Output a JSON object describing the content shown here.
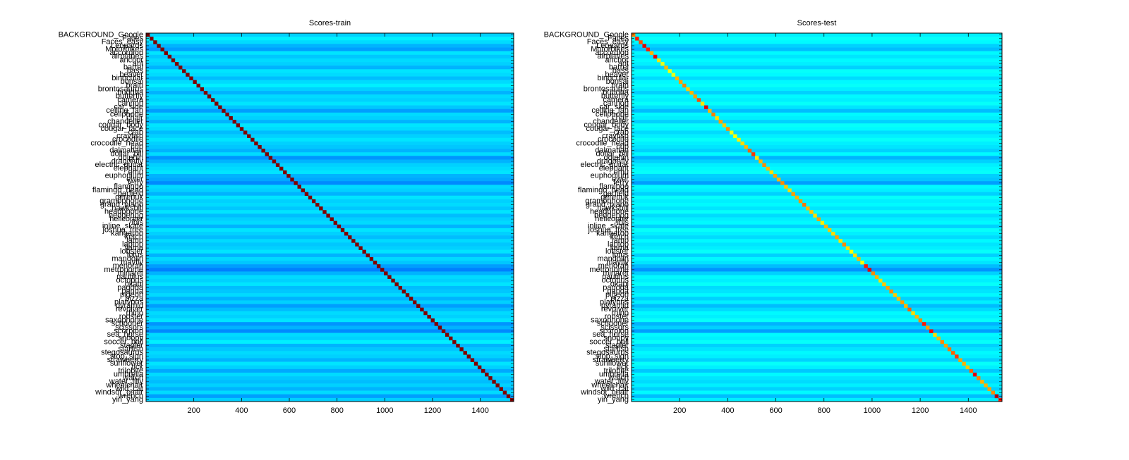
{
  "chart_data": [
    {
      "type": "heatmap",
      "title": "Scores-train",
      "colormap": "jet",
      "clim": [
        0,
        1
      ],
      "xlim": [
        0,
        1540
      ],
      "xticks": [
        200,
        400,
        600,
        800,
        1000,
        1200,
        1400
      ],
      "categories": [
        "BACKGROUND_Google",
        "Faces",
        "Faces_easy",
        "Leopards",
        "Motorbikes",
        "accordion",
        "airplanes",
        "anchor",
        "ant",
        "barrel",
        "bass",
        "beaver",
        "binocular",
        "bonsai",
        "brain",
        "brontosaurus",
        "buddha",
        "butterfly",
        "camera",
        "cannon",
        "car_side",
        "ceiling_fan",
        "cellphone",
        "chair",
        "chandelier",
        "cougar_body",
        "cougar_face",
        "crab",
        "crayfish",
        "crocodile",
        "crocodile_head",
        "cup",
        "dalmatian",
        "dollar_bill",
        "dolphin",
        "dragonfly",
        "electric_guitar",
        "elephant",
        "emu",
        "euphonium",
        "ewer",
        "ferry",
        "flamingo",
        "flamingo_head",
        "garfield",
        "gerenuk",
        "gramophone",
        "grand_piano",
        "hawksbill",
        "headphone",
        "hedgehog",
        "helicopter",
        "ibis",
        "inline_skate",
        "joshua_tree",
        "kangaroo",
        "ketch",
        "lamp",
        "laptop",
        "llama",
        "lobster",
        "lotus",
        "mandolin",
        "mayfly",
        "menorah",
        "metronome",
        "minaret",
        "nautilus",
        "octopus",
        "okapi",
        "pagoda",
        "panda",
        "pigeon",
        "pizza",
        "platypus",
        "pyramid",
        "revolver",
        "rhino",
        "rooster",
        "saxophone",
        "schooner",
        "scissors",
        "scorpion",
        "sea_horse",
        "snoopy",
        "soccer_ball",
        "stapler",
        "starfish",
        "stegosaurus",
        "stop_sign",
        "strawberry",
        "sunflower",
        "tick",
        "trilobite",
        "umbrella",
        "watch",
        "water_lilly",
        "wheelchair",
        "wild_cat",
        "windsor_chair",
        "wrench",
        "yin_yang"
      ],
      "values": [
        1,
        1,
        1,
        1,
        1,
        1,
        1,
        1,
        1,
        1,
        1,
        1,
        1,
        1,
        1,
        1,
        1,
        1,
        1,
        1,
        1,
        1,
        1,
        1,
        1,
        1,
        1,
        1,
        1,
        1,
        1,
        1,
        1,
        1,
        1,
        1,
        1,
        1,
        1,
        1,
        1,
        1,
        1,
        1,
        1,
        1,
        1,
        1,
        1,
        1,
        1,
        1,
        1,
        1,
        1,
        1,
        1,
        1,
        1,
        1,
        1,
        1,
        1,
        1,
        1,
        1,
        1,
        1,
        1,
        1,
        1,
        1,
        1,
        1,
        1,
        1,
        1,
        1,
        1,
        1,
        1,
        1,
        1,
        1,
        1,
        1,
        1,
        1,
        1,
        1,
        1,
        1,
        1,
        1,
        1,
        1,
        1,
        1,
        1,
        1,
        1,
        1
      ],
      "background": [
        0.33,
        0.36,
        0.34,
        0.3,
        0.28,
        0.35,
        0.32,
        0.34,
        0.33,
        0.3,
        0.35,
        0.34,
        0.31,
        0.34,
        0.36,
        0.33,
        0.3,
        0.34,
        0.33,
        0.35,
        0.32,
        0.28,
        0.34,
        0.33,
        0.3,
        0.35,
        0.34,
        0.31,
        0.33,
        0.35,
        0.33,
        0.32,
        0.3,
        0.34,
        0.27,
        0.3,
        0.33,
        0.34,
        0.35,
        0.3,
        0.29,
        0.26,
        0.34,
        0.33,
        0.3,
        0.35,
        0.33,
        0.34,
        0.32,
        0.35,
        0.31,
        0.33,
        0.34,
        0.3,
        0.35,
        0.33,
        0.31,
        0.34,
        0.32,
        0.33,
        0.35,
        0.3,
        0.34,
        0.32,
        0.28,
        0.25,
        0.3,
        0.34,
        0.33,
        0.35,
        0.31,
        0.32,
        0.34,
        0.3,
        0.33,
        0.28,
        0.31,
        0.34,
        0.33,
        0.35,
        0.27,
        0.3,
        0.26,
        0.34,
        0.33,
        0.36,
        0.3,
        0.32,
        0.34,
        0.33,
        0.3,
        0.35,
        0.33,
        0.29,
        0.34,
        0.32,
        0.31,
        0.33,
        0.3,
        0.34,
        0.28,
        0.33
      ]
    },
    {
      "type": "heatmap",
      "title": "Scores-test",
      "colormap": "jet",
      "clim": [
        0,
        1
      ],
      "xlim": [
        0,
        1540
      ],
      "xticks": [
        200,
        400,
        600,
        800,
        1000,
        1200,
        1400
      ],
      "categories": [
        "BACKGROUND_Google",
        "Faces",
        "Faces_easy",
        "Leopards",
        "Motorbikes",
        "accordion",
        "airplanes",
        "anchor",
        "ant",
        "barrel",
        "bass",
        "beaver",
        "binocular",
        "bonsai",
        "brain",
        "brontosaurus",
        "buddha",
        "butterfly",
        "camera",
        "cannon",
        "car_side",
        "ceiling_fan",
        "cellphone",
        "chair",
        "chandelier",
        "cougar_body",
        "cougar_face",
        "crab",
        "crayfish",
        "crocodile",
        "crocodile_head",
        "cup",
        "dalmatian",
        "dollar_bill",
        "dolphin",
        "dragonfly",
        "electric_guitar",
        "elephant",
        "emu",
        "euphonium",
        "ewer",
        "ferry",
        "flamingo",
        "flamingo_head",
        "garfield",
        "gerenuk",
        "gramophone",
        "grand_piano",
        "hawksbill",
        "headphone",
        "hedgehog",
        "helicopter",
        "ibis",
        "inline_skate",
        "joshua_tree",
        "kangaroo",
        "ketch",
        "lamp",
        "laptop",
        "llama",
        "lobster",
        "lotus",
        "mandolin",
        "mayfly",
        "menorah",
        "metronome",
        "minaret",
        "nautilus",
        "octopus",
        "okapi",
        "pagoda",
        "panda",
        "pigeon",
        "pizza",
        "platypus",
        "pyramid",
        "revolver",
        "rhino",
        "rooster",
        "saxophone",
        "schooner",
        "scissors",
        "scorpion",
        "sea_horse",
        "snoopy",
        "soccer_ball",
        "stapler",
        "starfish",
        "stegosaurus",
        "stop_sign",
        "strawberry",
        "sunflower",
        "tick",
        "trilobite",
        "umbrella",
        "watch",
        "water_lilly",
        "wheelchair",
        "wild_cat",
        "windsor_chair",
        "wrench",
        "yin_yang"
      ],
      "values": [
        0.75,
        0.85,
        0.8,
        0.9,
        0.85,
        0.7,
        0.9,
        0.65,
        0.6,
        0.7,
        0.62,
        0.6,
        0.7,
        0.72,
        0.75,
        0.68,
        0.7,
        0.72,
        0.8,
        0.65,
        0.9,
        0.7,
        0.75,
        0.66,
        0.72,
        0.68,
        0.74,
        0.6,
        0.62,
        0.64,
        0.66,
        0.7,
        0.78,
        0.82,
        0.65,
        0.7,
        0.74,
        0.7,
        0.66,
        0.72,
        0.7,
        0.74,
        0.68,
        0.66,
        0.72,
        0.7,
        0.73,
        0.76,
        0.7,
        0.68,
        0.66,
        0.72,
        0.64,
        0.7,
        0.68,
        0.66,
        0.72,
        0.65,
        0.74,
        0.66,
        0.62,
        0.66,
        0.7,
        0.62,
        0.85,
        0.9,
        0.74,
        0.7,
        0.66,
        0.68,
        0.72,
        0.74,
        0.68,
        0.7,
        0.72,
        0.7,
        0.78,
        0.66,
        0.7,
        0.74,
        0.85,
        0.72,
        0.88,
        0.66,
        0.7,
        0.74,
        0.72,
        0.76,
        0.78,
        0.82,
        0.72,
        0.7,
        0.68,
        0.78,
        0.9,
        0.75,
        0.7,
        0.7,
        0.72,
        0.74,
        0.95,
        0.85
      ],
      "background": [
        0.36,
        0.38,
        0.37,
        0.33,
        0.31,
        0.37,
        0.35,
        0.37,
        0.36,
        0.33,
        0.38,
        0.37,
        0.34,
        0.37,
        0.38,
        0.36,
        0.33,
        0.37,
        0.36,
        0.38,
        0.35,
        0.31,
        0.37,
        0.36,
        0.33,
        0.38,
        0.37,
        0.34,
        0.36,
        0.38,
        0.36,
        0.35,
        0.33,
        0.37,
        0.3,
        0.33,
        0.36,
        0.37,
        0.38,
        0.33,
        0.32,
        0.28,
        0.37,
        0.36,
        0.33,
        0.38,
        0.36,
        0.37,
        0.35,
        0.38,
        0.34,
        0.36,
        0.37,
        0.33,
        0.38,
        0.36,
        0.34,
        0.37,
        0.35,
        0.36,
        0.38,
        0.33,
        0.37,
        0.35,
        0.31,
        0.27,
        0.33,
        0.37,
        0.36,
        0.38,
        0.34,
        0.35,
        0.37,
        0.33,
        0.36,
        0.31,
        0.34,
        0.37,
        0.36,
        0.38,
        0.3,
        0.33,
        0.28,
        0.37,
        0.36,
        0.38,
        0.33,
        0.35,
        0.37,
        0.36,
        0.33,
        0.38,
        0.36,
        0.32,
        0.37,
        0.35,
        0.34,
        0.36,
        0.33,
        0.37,
        0.31,
        0.36
      ]
    }
  ]
}
